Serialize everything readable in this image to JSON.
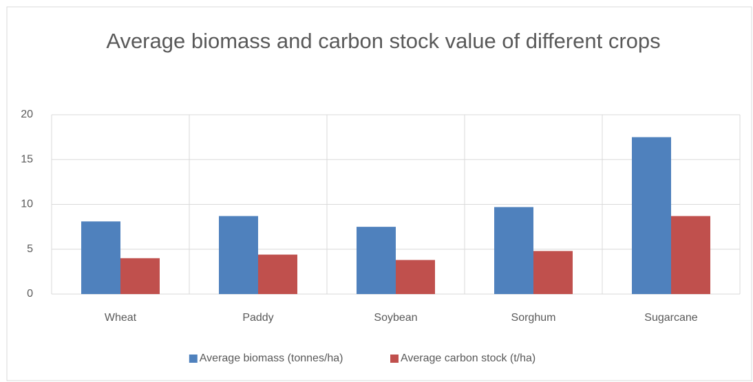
{
  "chart_data": {
    "type": "bar",
    "title": "Average biomass and carbon stock value of different crops",
    "categories": [
      "Wheat",
      "Paddy",
      "Soybean",
      "Sorghum",
      "Sugarcane"
    ],
    "series": [
      {
        "name": "Average biomass (tonnes/ha)",
        "color": "#4f81bd",
        "values": [
          8.1,
          8.7,
          7.5,
          9.7,
          17.5
        ]
      },
      {
        "name": "Average carbon stock (t/ha)",
        "color": "#c0504d",
        "values": [
          4.0,
          4.4,
          3.8,
          4.8,
          8.7
        ]
      }
    ],
    "ylim": [
      0,
      20
    ],
    "yticks": [
      0,
      5,
      10,
      15,
      20
    ],
    "grid": true,
    "legend": "bottom"
  }
}
